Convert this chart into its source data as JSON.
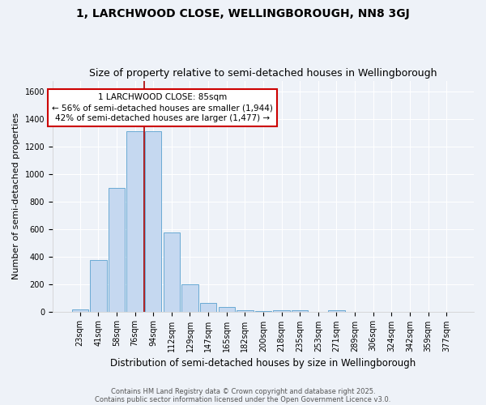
{
  "title": "1, LARCHWOOD CLOSE, WELLINGBOROUGH, NN8 3GJ",
  "subtitle": "Size of property relative to semi-detached houses in Wellingborough",
  "xlabel": "Distribution of semi-detached houses by size in Wellingborough",
  "ylabel": "Number of semi-detached properties",
  "categories": [
    "23sqm",
    "41sqm",
    "58sqm",
    "76sqm",
    "94sqm",
    "112sqm",
    "129sqm",
    "147sqm",
    "165sqm",
    "182sqm",
    "200sqm",
    "218sqm",
    "235sqm",
    "253sqm",
    "271sqm",
    "289sqm",
    "306sqm",
    "324sqm",
    "342sqm",
    "359sqm",
    "377sqm"
  ],
  "values": [
    18,
    375,
    900,
    1310,
    1310,
    575,
    200,
    65,
    30,
    12,
    5,
    12,
    10,
    0,
    8,
    0,
    0,
    0,
    0,
    0,
    0
  ],
  "bar_color": "#c5d8f0",
  "bar_edge_color": "#6aaad4",
  "vline_color": "#aa0000",
  "annotation_title": "1 LARCHWOOD CLOSE: 85sqm",
  "annotation_line1": "← 56% of semi-detached houses are smaller (1,944)",
  "annotation_line2": "42% of semi-detached houses are larger (1,477) →",
  "annotation_box_color": "#ffffff",
  "annotation_box_edge": "#cc0000",
  "footer1": "Contains HM Land Registry data © Crown copyright and database right 2025.",
  "footer2": "Contains public sector information licensed under the Open Government Licence v3.0.",
  "background_color": "#eef2f8",
  "plot_bg_color": "#eef2f8",
  "ylim": [
    0,
    1680
  ],
  "title_fontsize": 10,
  "subtitle_fontsize": 9,
  "tick_fontsize": 7,
  "ylabel_fontsize": 8,
  "xlabel_fontsize": 8.5,
  "ann_fontsize": 7.5,
  "footer_fontsize": 6
}
